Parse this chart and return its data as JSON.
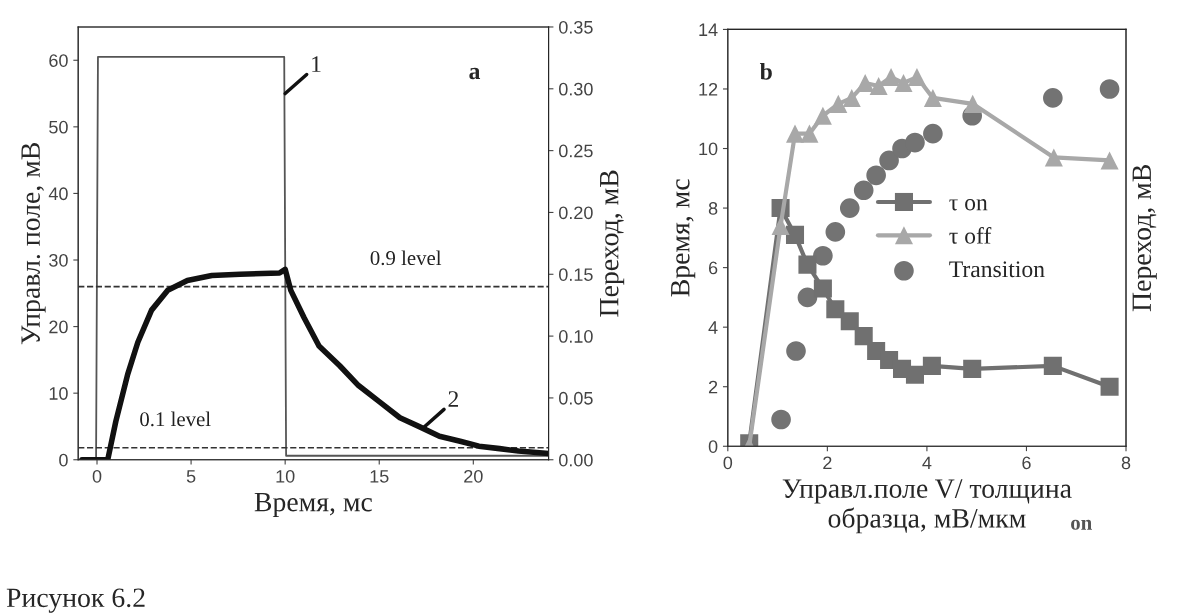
{
  "chart_data": [
    {
      "type": "line",
      "xlabel": "Время, мс",
      "ylabel": "Управл. поле, мВ",
      "y2label": "Переход, мВ",
      "xlim": [
        -1,
        24
      ],
      "xticks": [
        0,
        5,
        10,
        15,
        20
      ],
      "ylim": [
        0,
        65
      ],
      "yticks": [
        0,
        10,
        20,
        30,
        40,
        50,
        60
      ],
      "y2lim": [
        0,
        0.35
      ],
      "y2ticks": [
        {
          "value": 0,
          "label": "0.00"
        },
        {
          "value": 0.05,
          "label": "0.05"
        },
        {
          "value": 0.1,
          "label": "0.10"
        },
        {
          "value": 0.15,
          "label": "0.15"
        },
        {
          "value": 0.2,
          "label": "0.20"
        },
        {
          "value": 0.25,
          "label": "0.25"
        },
        {
          "value": 0.3,
          "label": "0.30"
        },
        {
          "value": 0.35,
          "label": "0.35"
        }
      ],
      "series": [
        {
          "color": "#555555",
          "x": [
            -0.8,
            -0.05,
            0.05,
            9.95,
            10.05,
            24
          ],
          "values": [
            0,
            0,
            60.5,
            60.5,
            0.6,
            0.6
          ]
        },
        {
          "color": "#111111",
          "axis": "y2",
          "x": [
            -0.8,
            0.57,
            1.0,
            1.63,
            2.17,
            2.9,
            3.76,
            4.8,
            6.1,
            7.6,
            9.7,
            10.0,
            10.3,
            11.0,
            11.8,
            12.9,
            13.9,
            15.0,
            16.1,
            17.1,
            18.2,
            19.3,
            20.3,
            21.4,
            22.4,
            24.0
          ],
          "values": [
            0,
            0,
            0.031,
            0.069,
            0.095,
            0.121,
            0.137,
            0.145,
            0.149,
            0.15,
            0.151,
            0.154,
            0.137,
            0.115,
            0.092,
            0.076,
            0.06,
            0.047,
            0.034,
            0.027,
            0.019,
            0.015,
            0.011,
            0.009,
            0.007,
            0.005
          ]
        }
      ],
      "ref_lines": [
        {
          "axis": "y",
          "value": 26,
          "label": "0.9 level",
          "line_style": "dashed"
        },
        {
          "axis": "y",
          "value": 1.8,
          "label": "0.1 level",
          "line_style": "dashed"
        }
      ],
      "annotations": [
        "a",
        {
          "text": "1",
          "x": 10,
          "y": 55
        },
        {
          "text": "2",
          "x": 17.3,
          "y": 4.7
        },
        "Рисунок 6.2"
      ],
      "grid": false,
      "legend": false
    },
    {
      "type": "line",
      "xlabel": "Управл.поле V/ толщина\nобразца, мВ/мкм",
      "ylabel": "Время, мс",
      "y2label": "Переход, мВ",
      "xlim": [
        0,
        8
      ],
      "xticks": [
        0,
        2,
        4,
        6,
        8
      ],
      "ylim": [
        0,
        14
      ],
      "yticks": [
        0,
        2,
        4,
        6,
        8,
        10,
        12,
        14
      ],
      "series": [
        {
          "name": "τ on",
          "color": "#707070",
          "marker": "square",
          "x": [
            0.43,
            1.06,
            1.35,
            1.6,
            1.91,
            2.16,
            2.45,
            2.73,
            2.98,
            3.24,
            3.5,
            3.76,
            4.1,
            4.91,
            6.53,
            7.67
          ],
          "values": [
            0.1,
            8.0,
            7.1,
            6.1,
            5.3,
            4.6,
            4.2,
            3.7,
            3.2,
            2.9,
            2.6,
            2.4,
            2.7,
            2.6,
            2.7,
            2.0
          ]
        },
        {
          "name": "τ off",
          "color": "#a8a8a8",
          "marker": "triangle",
          "x": [
            0.43,
            1.06,
            1.35,
            1.64,
            1.91,
            2.22,
            2.49,
            2.76,
            3.03,
            3.28,
            3.53,
            3.8,
            4.12,
            4.92,
            6.55,
            7.67
          ],
          "values": [
            0,
            7.4,
            10.5,
            10.5,
            11.1,
            11.5,
            11.7,
            12.2,
            12.1,
            12.4,
            12.2,
            12.4,
            11.7,
            11.5,
            9.7,
            9.6
          ]
        },
        {
          "name": "Transition",
          "type": "scatter",
          "color": "#737373",
          "marker": "circle",
          "x": [
            1.07,
            1.37,
            1.6,
            1.91,
            2.16,
            2.45,
            2.73,
            2.98,
            3.24,
            3.5,
            3.76,
            4.12,
            4.91,
            6.53,
            7.67
          ],
          "values": [
            0.9,
            3.2,
            5.0,
            6.4,
            7.2,
            8.0,
            8.6,
            9.1,
            9.6,
            10.0,
            10.2,
            10.5,
            11.1,
            11.7,
            12.0
          ]
        }
      ],
      "annotations": [
        "b",
        "on"
      ],
      "grid": false,
      "legend": "center right"
    }
  ]
}
